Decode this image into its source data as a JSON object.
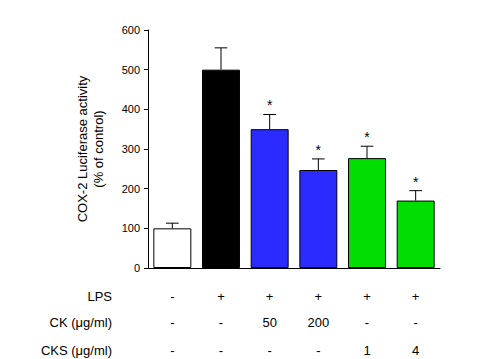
{
  "chart_data": {
    "type": "bar",
    "y_label": "COX-2 Luciferase activity\n(% of control)",
    "categories": [
      null,
      null,
      null,
      null,
      null,
      null
    ],
    "values": [
      100,
      500,
      350,
      247,
      277,
      170
    ],
    "errors": [
      13,
      55,
      37,
      28,
      30,
      25
    ],
    "colors": [
      "#ffffff",
      "#000000",
      "#2b2bff",
      "#2b2bff",
      "#00dd00",
      "#00dd00"
    ],
    "annotations": [
      {
        "index": 2,
        "text": "*"
      },
      {
        "index": 3,
        "text": "*"
      },
      {
        "index": 4,
        "text": "*"
      },
      {
        "index": 5,
        "text": "*"
      }
    ],
    "conditions": [
      {
        "label": "LPS",
        "values": [
          "-",
          "+",
          "+",
          "+",
          "+",
          "+"
        ]
      },
      {
        "label": "CK (μg/ml)",
        "values": [
          "-",
          "-",
          "50",
          "200",
          "-",
          "-"
        ]
      },
      {
        "label": "CKS (μg/ml)",
        "values": [
          "-",
          "-",
          "-",
          "-",
          "1",
          "4"
        ]
      }
    ],
    "ylim": [
      0,
      600
    ],
    "yticks": [
      0,
      100,
      200,
      300,
      400,
      500,
      600
    ],
    "grid": false
  }
}
